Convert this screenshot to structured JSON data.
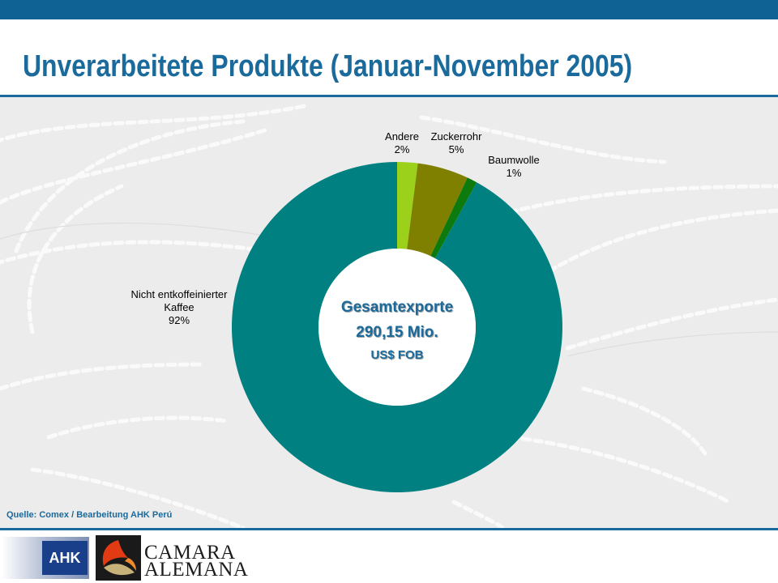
{
  "title": "Unverarbeitete Produkte (Januar-November 2005)",
  "colors": {
    "brand_blue": "#1b6a9c",
    "top_bar": "#0e6394",
    "slice_andere": "#9bd11a",
    "slice_zuckerrohr": "#808000",
    "slice_baumwolle": "#0d7a0d",
    "slice_kaffee": "#008080"
  },
  "chart_data": {
    "type": "pie",
    "variant": "donut",
    "start": "top",
    "direction": "clockwise",
    "slices": [
      {
        "label": "Andere",
        "value": 2,
        "value_label": "2%",
        "color": "#9bd11a"
      },
      {
        "label": "Zuckerrohr",
        "value": 5,
        "value_label": "5%",
        "color": "#808000"
      },
      {
        "label": "Baumwolle",
        "value": 1,
        "value_label": "1%",
        "color": "#0d7a0d"
      },
      {
        "label": "Nicht entkoffeinierter Kaffee",
        "label_lines": [
          "Nicht entkoffeinierter",
          "Kaffee"
        ],
        "value": 92,
        "value_label": "92%",
        "color": "#008080"
      }
    ],
    "center_text": [
      "Gesamtexporte",
      "290,15 Mio.",
      "US$ FOB"
    ]
  },
  "source": "Quelle: Comex / Bearbeitung AHK Perú",
  "footer": {
    "ahk_logo_text": "AHK",
    "camara_line1": "CAMARA",
    "camara_line2": "ALEMANA"
  }
}
